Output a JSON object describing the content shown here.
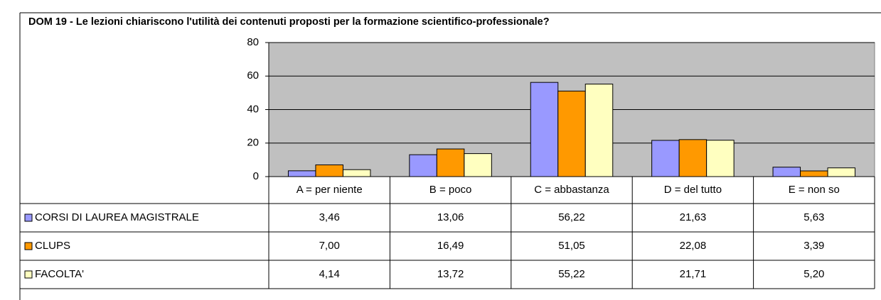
{
  "chart_data": {
    "type": "bar",
    "title": "DOM 19 - Le lezioni chiariscono l'utilità dei contenuti proposti per la formazione scientifico-professionale?",
    "categories": [
      "A = per niente",
      "B = poco",
      "C = abbastanza",
      "D = del tutto",
      "E = non so"
    ],
    "series": [
      {
        "name": "CORSI DI LAUREA MAGISTRALE",
        "color": "#9999ff",
        "values": [
          3.46,
          13.06,
          56.22,
          21.63,
          5.63
        ],
        "value_labels": [
          "3,46",
          "13,06",
          "56,22",
          "21,63",
          "5,63"
        ]
      },
      {
        "name": "CLUPS",
        "color": "#ff9900",
        "values": [
          7.0,
          16.49,
          51.05,
          22.08,
          3.39
        ],
        "value_labels": [
          "7,00",
          "16,49",
          "51,05",
          "22,08",
          "3,39"
        ]
      },
      {
        "name": "FACOLTA'",
        "color": "#ffffc0",
        "values": [
          4.14,
          13.72,
          55.22,
          21.71,
          5.2
        ],
        "value_labels": [
          "4,14",
          "13,72",
          "55,22",
          "21,71",
          "5,20"
        ]
      }
    ],
    "ylim": [
      0,
      80
    ],
    "yticks": [
      0,
      20,
      40,
      60,
      80
    ],
    "grid": true
  }
}
